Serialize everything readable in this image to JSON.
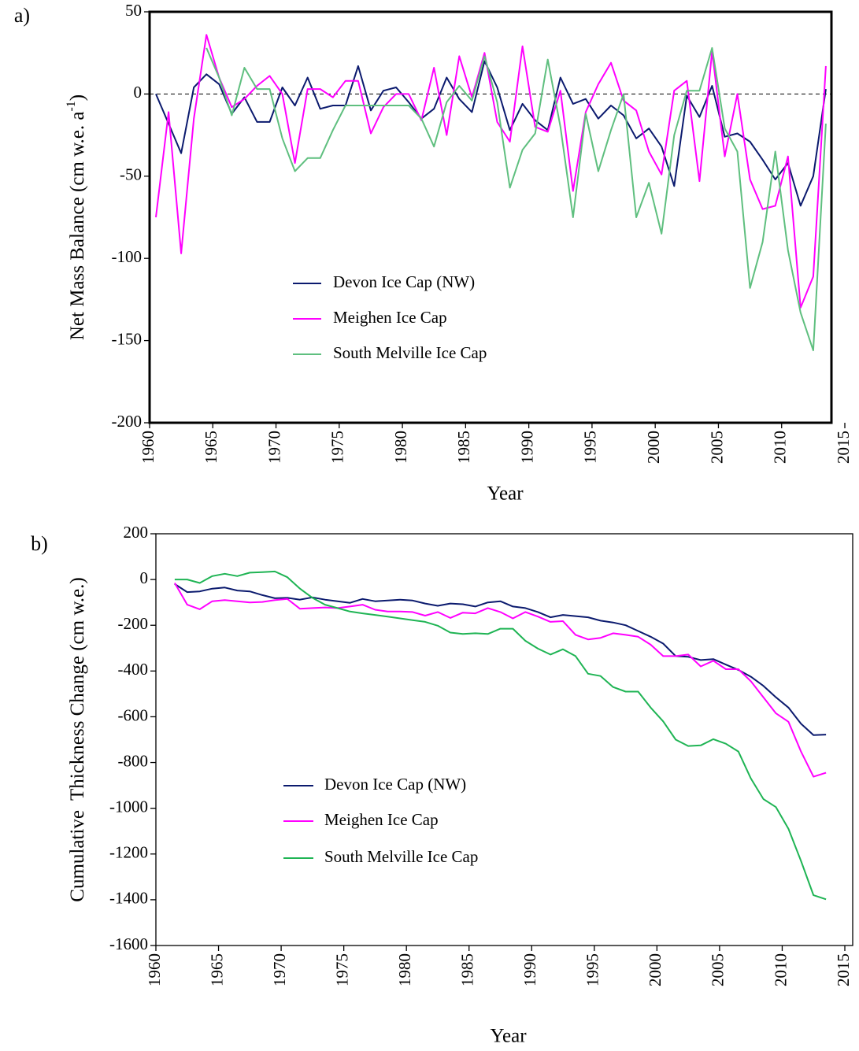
{
  "chart_data": [
    {
      "type": "line",
      "panel_label": "a)",
      "xlabel": "Year",
      "ylabel": "Net Mass Balance (cm w.e. a",
      "ylabel_sup": "-1",
      "ylabel_end": ")",
      "x": [
        1960.5,
        1961.5,
        1962.5,
        1963.5,
        1964.5,
        1965.5,
        1966.5,
        1967.5,
        1968.5,
        1969.5,
        1970.5,
        1971.5,
        1972.5,
        1973.5,
        1974.5,
        1975.5,
        1976.5,
        1977.5,
        1978.5,
        1979.5,
        1980.5,
        1981.5,
        1982.5,
        1983.5,
        1984.5,
        1985.5,
        1986.5,
        1987.5,
        1988.5,
        1989.5,
        1990.5,
        1991.5,
        1992.5,
        1993.5,
        1994.5,
        1995.5,
        1996.5,
        1997.5,
        1998.5,
        1999.5,
        2000.5,
        2001.5,
        2002.5,
        2003.5,
        2004.5,
        2005.5,
        2006.5,
        2007.5,
        2008.5,
        2009.5,
        2010.5,
        2011.5,
        2012.5,
        2013.5
      ],
      "series": [
        {
          "name": "Devon Ice Cap (NW)",
          "color": "#0b1a6e",
          "values": [
            0,
            -18,
            -36,
            4,
            12,
            6,
            -12,
            -2,
            -17,
            -17,
            4,
            -7,
            10,
            -9,
            -7,
            -7,
            17,
            -10,
            2,
            4,
            -5,
            -15,
            -9,
            10,
            -3,
            -11,
            20,
            4,
            -22,
            -6,
            -16,
            -22,
            10,
            -6,
            -3,
            -15,
            -7,
            -13,
            -27,
            -21,
            -32,
            -56,
            -1,
            -14,
            5,
            -26,
            -24,
            -29,
            -40,
            -52,
            -42,
            -68,
            -50,
            3
          ]
        },
        {
          "name": "Meighen Ice Cap",
          "color": "#ff00ff",
          "values": [
            -75,
            -11,
            -97,
            -15,
            36,
            10,
            -8,
            -3,
            5,
            11,
            0,
            -42,
            3,
            3,
            -2,
            8,
            8,
            -24,
            -8,
            0,
            0,
            -16,
            16,
            -25,
            23,
            -2,
            25,
            -17,
            -29,
            29,
            -20,
            -23,
            2,
            -59,
            -11,
            6,
            19,
            -4,
            -10,
            -35,
            -49,
            2,
            8,
            -53,
            26,
            -38,
            0,
            -52,
            -70,
            -68,
            -38,
            -130,
            -111,
            17
          ]
        },
        {
          "name": "South Melville Ice Cap",
          "color": "#5fbf7f",
          "values": [
            null,
            null,
            null,
            null,
            28,
            10,
            -13,
            16,
            3,
            3,
            -27,
            -47,
            -39,
            -39,
            -22,
            -7,
            -7,
            -7,
            -7,
            -7,
            -7,
            -15,
            -32,
            -5,
            5,
            -4,
            23,
            -5,
            -57,
            -34,
            -24,
            21,
            -20,
            -75,
            -12,
            -47,
            -22,
            0,
            -75,
            -54,
            -85,
            -25,
            2,
            2,
            28,
            -21,
            -35,
            -118,
            -90,
            -35,
            -95,
            -133,
            -156,
            -18
          ]
        }
      ],
      "xlim": [
        1960,
        2015
      ],
      "ylim": [
        -200,
        50
      ],
      "xticks": [
        1960,
        1965,
        1970,
        1975,
        1980,
        1985,
        1990,
        1995,
        2000,
        2005,
        2010,
        2015
      ],
      "yticks": [
        -200,
        -150,
        -100,
        -50,
        0,
        50
      ],
      "zero_line": true
    },
    {
      "type": "line",
      "panel_label": "b)",
      "xlabel": "Year",
      "ylabel": "Cumulative  Thickness Change (cm w.e.)",
      "x": [
        1961.5,
        1962.5,
        1963.5,
        1964.5,
        1965.5,
        1966.5,
        1967.5,
        1968.5,
        1969.5,
        1970.5,
        1971.5,
        1972.5,
        1973.5,
        1974.5,
        1975.5,
        1976.5,
        1977.5,
        1978.5,
        1979.5,
        1980.5,
        1981.5,
        1982.5,
        1983.5,
        1984.5,
        1985.5,
        1986.5,
        1987.5,
        1988.5,
        1989.5,
        1990.5,
        1991.5,
        1992.5,
        1993.5,
        1994.5,
        1995.5,
        1996.5,
        1997.5,
        1998.5,
        1999.5,
        2000.5,
        2001.5,
        2002.5,
        2003.5,
        2004.5,
        2005.5,
        2006.5,
        2007.5,
        2008.5,
        2009.5,
        2010.5,
        2011.5,
        2012.5,
        2013.5
      ],
      "series": [
        {
          "name": "Devon Ice Cap (NW)",
          "color": "#0b1a6e",
          "values": [
            -20,
            -55,
            -52,
            -40,
            -35,
            -48,
            -52,
            -68,
            -82,
            -80,
            -88,
            -78,
            -88,
            -95,
            -102,
            -85,
            -95,
            -92,
            -88,
            -92,
            -105,
            -115,
            -105,
            -108,
            -118,
            -100,
            -95,
            -118,
            -125,
            -142,
            -165,
            -155,
            -160,
            -165,
            -180,
            -188,
            -200,
            -225,
            -250,
            -280,
            -335,
            -338,
            -352,
            -348,
            -372,
            -395,
            -425,
            -465,
            -515,
            -560,
            -630,
            -680,
            -678
          ]
        },
        {
          "name": "Meighen Ice Cap",
          "color": "#ff00ff",
          "values": [
            -15,
            -110,
            -130,
            -95,
            -90,
            -95,
            -100,
            -98,
            -90,
            -85,
            -128,
            -125,
            -122,
            -125,
            -118,
            -110,
            -132,
            -140,
            -140,
            -142,
            -158,
            -142,
            -168,
            -145,
            -148,
            -125,
            -142,
            -170,
            -142,
            -162,
            -185,
            -182,
            -242,
            -262,
            -255,
            -235,
            -242,
            -250,
            -285,
            -335,
            -335,
            -328,
            -380,
            -355,
            -392,
            -392,
            -445,
            -515,
            -585,
            -622,
            -752,
            -862,
            -845
          ]
        },
        {
          "name": "South Melville Ice Cap",
          "color": "#1fb454",
          "values": [
            0,
            0,
            -15,
            15,
            25,
            15,
            30,
            32,
            35,
            10,
            -40,
            -80,
            -110,
            -125,
            -140,
            -148,
            -155,
            -162,
            -170,
            -178,
            -185,
            -202,
            -232,
            -238,
            -235,
            -238,
            -215,
            -215,
            -268,
            -302,
            -328,
            -305,
            -335,
            -412,
            -422,
            -470,
            -490,
            -490,
            -560,
            -620,
            -700,
            -728,
            -725,
            -698,
            -718,
            -752,
            -870,
            -960,
            -995,
            -1090,
            -1230,
            -1380,
            -1398
          ]
        }
      ],
      "xlim": [
        1960,
        2015
      ],
      "ylim": [
        -1600,
        200
      ],
      "xticks": [
        1960,
        1965,
        1970,
        1975,
        1980,
        1985,
        1990,
        1995,
        2000,
        2005,
        2010,
        2015
      ],
      "yticks": [
        -1600,
        -1400,
        -1200,
        -1000,
        -800,
        -600,
        -400,
        -200,
        0,
        200
      ],
      "zero_line": false
    }
  ]
}
